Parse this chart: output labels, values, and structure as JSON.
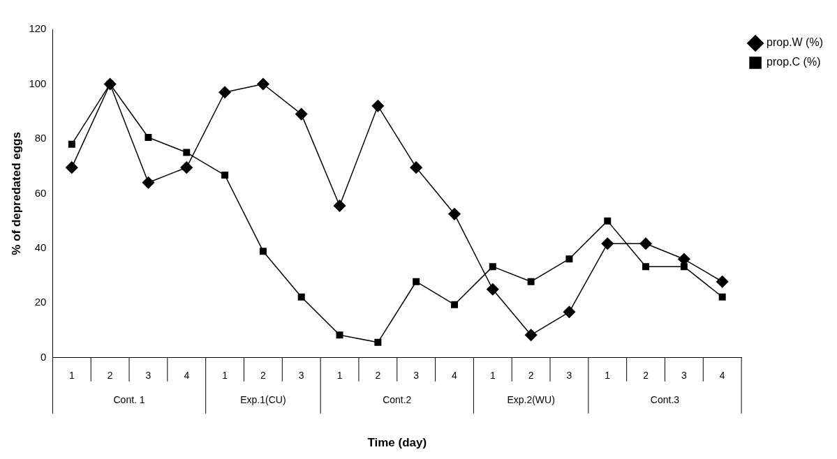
{
  "chart_data": {
    "type": "line",
    "xlabel": "Time (day)",
    "ylabel": "% of depredated eggs",
    "categories": [
      "1",
      "2",
      "3",
      "4",
      "1",
      "2",
      "3",
      "1",
      "2",
      "3",
      "4",
      "1",
      "2",
      "3",
      "1",
      "2",
      "3",
      "4"
    ],
    "annotations": [
      "Cont. 1",
      "Exp.1(CU)",
      "Cont.2",
      "Exp.2(WU)",
      "Cont.3"
    ],
    "series": [
      {
        "name": "prop.W (%)",
        "color": "#000000",
        "marker": "diamond",
        "values": [
          69.5,
          100,
          64,
          69.5,
          97,
          100,
          89,
          55.5,
          92,
          69.5,
          52.5,
          25,
          8.3,
          16.7,
          41.7,
          41.7,
          36,
          27.8
        ]
      },
      {
        "name": "prop.C (%)",
        "color": "#000000",
        "marker": "square",
        "values": [
          78,
          100,
          80.5,
          75,
          66.7,
          38.9,
          22.2,
          8.3,
          5.6,
          27.8,
          19.4,
          33.3,
          27.8,
          36.1,
          50,
          33.3,
          33.3,
          22.2
        ]
      }
    ],
    "ylim": [
      0,
      120
    ],
    "yticks": [
      0,
      20,
      40,
      60,
      80,
      100,
      120
    ],
    "grid": false,
    "legend": "top right",
    "line_style": "solid"
  }
}
